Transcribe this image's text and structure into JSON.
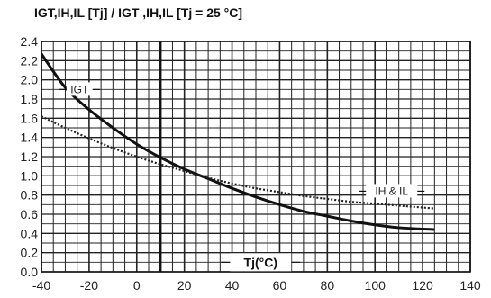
{
  "chart_data": {
    "type": "line",
    "title": "IGT,IH,IL [Tj] / IGT ,IH,IL [Tj = 25 °C]",
    "xlabel": "Tj(°C)",
    "ylabel": "",
    "xlim": [
      -40,
      140
    ],
    "ylim": [
      0,
      2.4
    ],
    "x_ticks": [
      "-40",
      "-20",
      "0",
      "20",
      "40",
      "60",
      "80",
      "100",
      "120",
      "140"
    ],
    "y_ticks": [
      "0.0",
      "0.2",
      "0.4",
      "0.6",
      "0.8",
      "1.0",
      "1.2",
      "1.4",
      "1.6",
      "1.8",
      "2.0",
      "2.2",
      "2.4"
    ],
    "grid": true,
    "series": [
      {
        "name": "IGT",
        "style": "solid",
        "color": "#111111",
        "x": [
          -40,
          -30,
          -20,
          -10,
          0,
          10,
          20,
          30,
          40,
          50,
          60,
          70,
          80,
          90,
          100,
          110,
          125
        ],
        "y": [
          2.27,
          1.92,
          1.69,
          1.5,
          1.33,
          1.19,
          1.07,
          0.97,
          0.87,
          0.78,
          0.7,
          0.63,
          0.58,
          0.53,
          0.49,
          0.46,
          0.44
        ]
      },
      {
        "name": "IH & IL",
        "style": "dotted",
        "color": "#222222",
        "x": [
          -40,
          -30,
          -20,
          -10,
          0,
          10,
          20,
          30,
          40,
          50,
          60,
          70,
          80,
          90,
          100,
          110,
          125
        ],
        "y": [
          1.62,
          1.5,
          1.39,
          1.29,
          1.2,
          1.12,
          1.05,
          0.98,
          0.92,
          0.87,
          0.83,
          0.79,
          0.76,
          0.73,
          0.71,
          0.69,
          0.66
        ]
      }
    ],
    "annotations": [
      {
        "text": "IGT",
        "series": 0,
        "x": -24,
        "y": 1.9
      },
      {
        "text": "IH & IL",
        "series": 1,
        "x": 107,
        "y": 0.84
      }
    ]
  }
}
